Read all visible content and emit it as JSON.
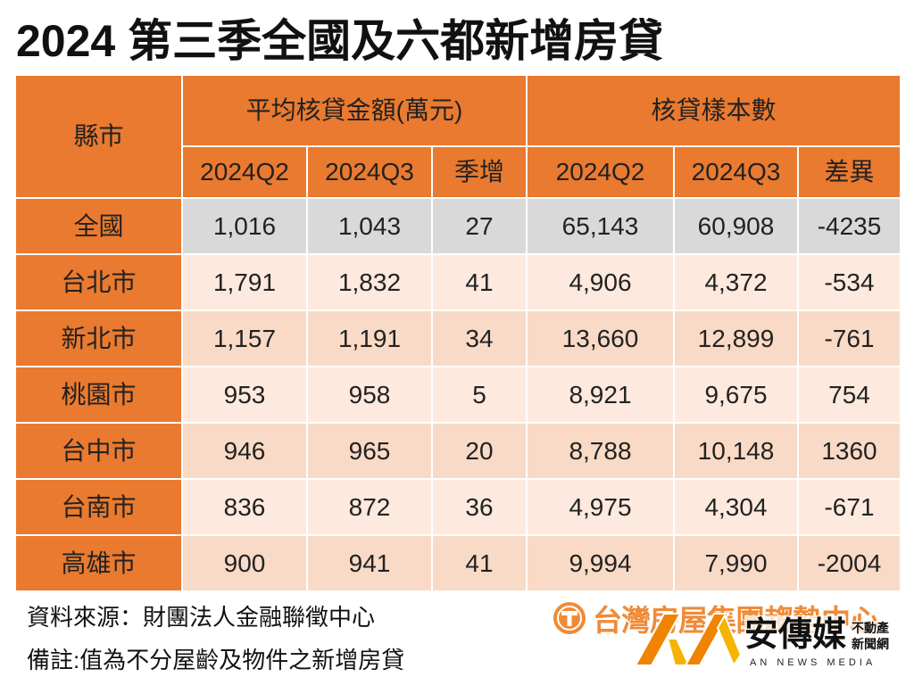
{
  "chart_data": {
    "type": "table",
    "title": "2024 第三季全國及六都新增房貸",
    "row_header_label": "縣市",
    "groups": [
      {
        "label": "平均核貸金額(萬元)",
        "columns": [
          "2024Q2",
          "2024Q3",
          "季增"
        ]
      },
      {
        "label": "核貸樣本數",
        "columns": [
          "2024Q2",
          "2024Q3",
          "差異"
        ]
      }
    ],
    "rows": [
      {
        "name": "全國",
        "values": [
          "1,016",
          "1,043",
          "27",
          "65,143",
          "60,908",
          "-4235"
        ]
      },
      {
        "name": "台北市",
        "values": [
          "1,791",
          "1,832",
          "41",
          "4,906",
          "4,372",
          "-534"
        ]
      },
      {
        "name": "新北市",
        "values": [
          "1,157",
          "1,191",
          "34",
          "13,660",
          "12,899",
          "-761"
        ]
      },
      {
        "name": "桃園市",
        "values": [
          "953",
          "958",
          "5",
          "8,921",
          "9,675",
          "754"
        ]
      },
      {
        "name": "台中市",
        "values": [
          "946",
          "965",
          "20",
          "8,788",
          "10,148",
          "1360"
        ]
      },
      {
        "name": "台南市",
        "values": [
          "836",
          "872",
          "36",
          "4,975",
          "4,304",
          "-671"
        ]
      },
      {
        "name": "高雄市",
        "values": [
          "900",
          "941",
          "41",
          "9,994",
          "7,990",
          "-2004"
        ]
      }
    ]
  },
  "footer": {
    "source": "資料來源：財團法人金融聯徵中心",
    "note": "備註:值為不分屋齡及物件之新增房貸"
  },
  "logos": {
    "brand_icon": "circle-t-icon",
    "brand": "台灣房屋集團趨勢中心",
    "media_mark_icon": "an-mark-icon",
    "media_name": "安傳媒",
    "media_sub_1": "不動產",
    "media_sub_2": "新聞網",
    "media_en": "AN NEWS MEDIA"
  },
  "colors": {
    "header": "#EA7A2F",
    "national_row": "#D9D9D9",
    "row_light": "#FDE9DD",
    "row_dark": "#F9DAC6",
    "brand_orange": "#EE7F22",
    "media_orange": "#F08300",
    "media_yellow": "#F5B400"
  }
}
